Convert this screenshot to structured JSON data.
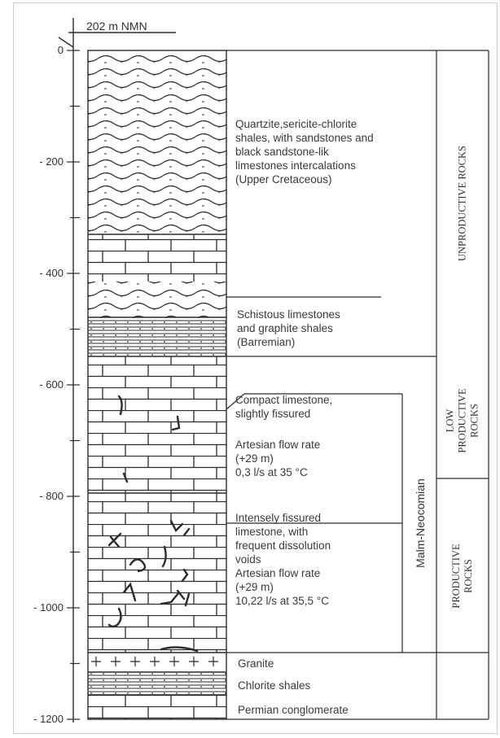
{
  "datum": "202 m  NMN",
  "depth_ticks": [
    "0",
    "- 200",
    "- 400",
    "- 600",
    "- 800",
    "- 1000",
    "- 1200"
  ],
  "units": [
    {
      "name": "quartzite",
      "lithology": "wavy shales with sandstone",
      "label": "Quartzite,sericite-chlorite\nshales, with sandstones and\nblack sandstone-lik\nlimestones intercalations\n(Upper Cretaceous)"
    },
    {
      "name": "schistous",
      "lithology": "limestone and shale",
      "label": "Schistous limestones\nand graphite shales\n(Barremian)"
    },
    {
      "name": "compact",
      "lithology": "limestone",
      "label": "Compact limestone,\nslightly fissured"
    },
    {
      "name": "compact-flow",
      "lithology": "",
      "label": "Artesian flow rate\n(+29 m)\n0,3 l/s at 35 °C"
    },
    {
      "name": "fissured",
      "lithology": "fissured limestone",
      "label": "Intensely fissured\nlimestone, with\nfrequent dissolution\nvoids"
    },
    {
      "name": "fissured-flow",
      "lithology": "",
      "label": "Artesian flow rate\n (+29 m)\n10,22 l/s at 35,5 °C"
    },
    {
      "name": "granite",
      "lithology": "granite",
      "label": "Granite"
    },
    {
      "name": "chlorite",
      "lithology": "shale",
      "label": "Chlorite shales"
    },
    {
      "name": "permian",
      "lithology": "conglomerate",
      "label": "Permian conglomerate"
    }
  ],
  "formation": "Malm-Neocomian",
  "productivity": {
    "unproductive": "UNPRODUCTIVE ROCKS",
    "low": "LOW PRODUCTIVE\nROCKS",
    "productive": "PRODUCTIVE\nROCKS"
  },
  "colors": {
    "line": "#2b2b2b",
    "text": "#3a3a3a"
  }
}
